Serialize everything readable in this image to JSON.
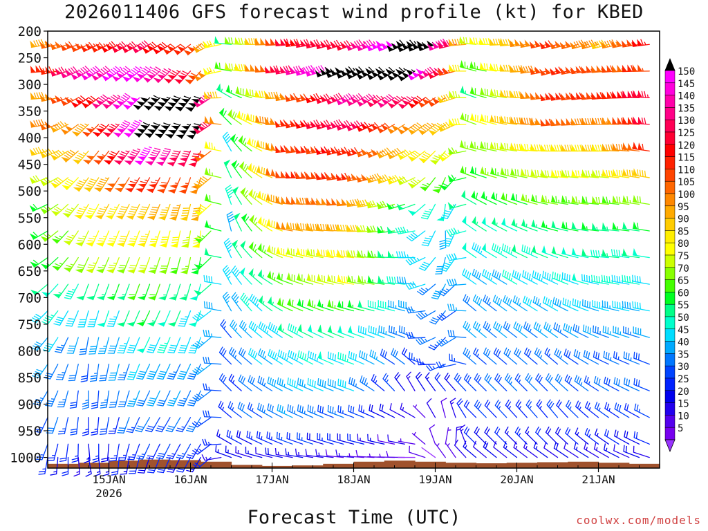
{
  "chart_data": {
    "type": "wind-barb time-height profile",
    "title": "2026011406 GFS forecast wind profile (kt) for KBED",
    "xlabel": "Forecast Time (UTC)",
    "credit": "coolwx.com/models",
    "pressure_levels": [
      225,
      275,
      325,
      375,
      425,
      475,
      525,
      575,
      625,
      675,
      725,
      775,
      825,
      875,
      925,
      975,
      1000
    ],
    "y_ticks": [
      200,
      250,
      300,
      350,
      400,
      450,
      500,
      550,
      600,
      650,
      700,
      750,
      800,
      850,
      900,
      950,
      1000
    ],
    "ylim": [
      200,
      1020
    ],
    "x_ticks": [
      {
        "label": "15JAN",
        "sublabel": "2026",
        "hour": 18
      },
      {
        "label": "16JAN",
        "sublabel": "",
        "hour": 42
      },
      {
        "label": "17JAN",
        "sublabel": "",
        "hour": 66
      },
      {
        "label": "18JAN",
        "sublabel": "",
        "hour": 90
      },
      {
        "label": "19JAN",
        "sublabel": "",
        "hour": 114
      },
      {
        "label": "20JAN",
        "sublabel": "",
        "hour": 138
      },
      {
        "label": "21JAN",
        "sublabel": "",
        "hour": 162
      }
    ],
    "xlim_hours": [
      0,
      180
    ],
    "time_step_hours": 3,
    "colorbar": {
      "labels": [
        150,
        145,
        140,
        135,
        130,
        125,
        120,
        115,
        110,
        105,
        100,
        95,
        90,
        85,
        80,
        75,
        70,
        65,
        60,
        55,
        50,
        45,
        40,
        35,
        30,
        25,
        20,
        15,
        10,
        5
      ],
      "colors": [
        "#ff00ff",
        "#ff00dd",
        "#ff00aa",
        "#ff0088",
        "#ff0055",
        "#ff0033",
        "#ff0000",
        "#ff2200",
        "#ff4400",
        "#ff6600",
        "#ff8800",
        "#ffaa00",
        "#ffcc00",
        "#ffee00",
        "#ffff00",
        "#ccff00",
        "#88ff00",
        "#44ff00",
        "#00ff22",
        "#00ff88",
        "#00ffcc",
        "#00ddff",
        "#00aaff",
        "#0077ff",
        "#0044ff",
        "#0022ff",
        "#0000ee",
        "#2200ee",
        "#5500ee",
        "#7700ee"
      ],
      "over_color": "#000000",
      "under_color": "#9933ff"
    },
    "wind_keyframes": [
      {
        "hour": 0,
        "levels": [
          [
            260,
            95
          ],
          [
            265,
            110
          ],
          [
            265,
            95
          ],
          [
            260,
            100
          ],
          [
            255,
            85
          ],
          [
            250,
            70
          ],
          [
            245,
            60
          ],
          [
            240,
            60
          ],
          [
            235,
            55
          ],
          [
            230,
            50
          ],
          [
            225,
            45
          ],
          [
            220,
            40
          ],
          [
            215,
            35
          ],
          [
            210,
            35
          ],
          [
            205,
            30
          ],
          [
            200,
            25
          ],
          [
            190,
            20
          ]
        ]
      },
      {
        "hour": 12,
        "levels": [
          [
            245,
            110
          ],
          [
            240,
            140
          ],
          [
            235,
            115
          ],
          [
            225,
            95
          ],
          [
            220,
            90
          ],
          [
            215,
            85
          ],
          [
            210,
            80
          ],
          [
            205,
            75
          ],
          [
            205,
            70
          ],
          [
            200,
            50
          ],
          [
            195,
            40
          ],
          [
            190,
            35
          ],
          [
            185,
            30
          ],
          [
            180,
            30
          ],
          [
            180,
            25
          ],
          [
            175,
            20
          ],
          [
            170,
            15
          ]
        ]
      },
      {
        "hour": 30,
        "levels": [
          [
            240,
            125
          ],
          [
            230,
            145
          ],
          [
            225,
            155
          ],
          [
            220,
            160
          ],
          [
            215,
            145
          ],
          [
            210,
            115
          ],
          [
            205,
            90
          ],
          [
            200,
            80
          ],
          [
            200,
            70
          ],
          [
            200,
            60
          ],
          [
            205,
            55
          ],
          [
            205,
            45
          ],
          [
            205,
            40
          ],
          [
            205,
            35
          ],
          [
            210,
            30
          ],
          [
            205,
            25
          ],
          [
            200,
            20
          ]
        ]
      },
      {
        "hour": 46,
        "levels": [
          [
            230,
            105
          ],
          [
            220,
            110
          ],
          [
            215,
            160
          ],
          [
            210,
            155
          ],
          [
            200,
            120
          ],
          [
            195,
            100
          ],
          [
            190,
            90
          ],
          [
            185,
            75
          ],
          [
            190,
            60
          ],
          [
            195,
            50
          ],
          [
            200,
            45
          ],
          [
            200,
            40
          ],
          [
            205,
            35
          ],
          [
            205,
            35
          ],
          [
            210,
            30
          ],
          [
            210,
            25
          ],
          [
            210,
            20
          ]
        ]
      },
      {
        "hour": 54,
        "levels": [
          [
            275,
            55
          ],
          [
            280,
            60
          ],
          [
            300,
            50
          ],
          [
            315,
            60
          ],
          [
            330,
            45
          ],
          [
            335,
            50
          ],
          [
            340,
            45
          ],
          [
            345,
            40
          ],
          [
            335,
            45
          ],
          [
            330,
            40
          ],
          [
            330,
            35
          ],
          [
            320,
            30
          ],
          [
            315,
            30
          ],
          [
            315,
            25
          ],
          [
            310,
            25
          ],
          [
            300,
            20
          ],
          [
            290,
            15
          ]
        ]
      },
      {
        "hour": 72,
        "levels": [
          [
            265,
            120
          ],
          [
            260,
            130
          ],
          [
            260,
            100
          ],
          [
            260,
            110
          ],
          [
            265,
            110
          ],
          [
            270,
            110
          ],
          [
            275,
            100
          ],
          [
            280,
            95
          ],
          [
            285,
            75
          ],
          [
            290,
            65
          ],
          [
            295,
            60
          ],
          [
            300,
            50
          ],
          [
            300,
            45
          ],
          [
            295,
            40
          ],
          [
            295,
            35
          ],
          [
            290,
            25
          ],
          [
            280,
            15
          ]
        ]
      },
      {
        "hour": 90,
        "levels": [
          [
            250,
            125
          ],
          [
            245,
            160
          ],
          [
            245,
            135
          ],
          [
            250,
            130
          ],
          [
            255,
            115
          ],
          [
            260,
            110
          ],
          [
            265,
            100
          ],
          [
            270,
            90
          ],
          [
            275,
            80
          ],
          [
            280,
            75
          ],
          [
            285,
            60
          ],
          [
            290,
            50
          ],
          [
            290,
            45
          ],
          [
            290,
            40
          ],
          [
            290,
            30
          ],
          [
            285,
            20
          ],
          [
            275,
            10
          ]
        ]
      },
      {
        "hour": 108,
        "levels": [
          [
            245,
            165
          ],
          [
            235,
            160
          ],
          [
            230,
            125
          ],
          [
            235,
            95
          ],
          [
            240,
            85
          ],
          [
            245,
            75
          ],
          [
            250,
            50
          ],
          [
            260,
            45
          ],
          [
            270,
            45
          ],
          [
            275,
            40
          ],
          [
            285,
            35
          ],
          [
            290,
            30
          ],
          [
            310,
            25
          ],
          [
            330,
            15
          ],
          [
            300,
            10
          ],
          [
            280,
            8
          ],
          [
            270,
            5
          ]
        ]
      },
      {
        "hour": 118,
        "levels": [
          [
            250,
            140
          ],
          [
            245,
            120
          ],
          [
            240,
            100
          ],
          [
            230,
            90
          ],
          [
            215,
            75
          ],
          [
            200,
            60
          ],
          [
            180,
            45
          ],
          [
            170,
            40
          ],
          [
            185,
            40
          ],
          [
            200,
            35
          ],
          [
            210,
            30
          ],
          [
            215,
            30
          ],
          [
            240,
            25
          ],
          [
            320,
            20
          ],
          [
            350,
            10
          ],
          [
            20,
            8
          ],
          [
            330,
            5
          ]
        ]
      },
      {
        "hour": 126,
        "levels": [
          [
            275,
            70
          ],
          [
            285,
            60
          ],
          [
            290,
            55
          ],
          [
            290,
            70
          ],
          [
            285,
            65
          ],
          [
            290,
            60
          ],
          [
            300,
            55
          ],
          [
            305,
            50
          ],
          [
            305,
            45
          ],
          [
            305,
            40
          ],
          [
            310,
            35
          ],
          [
            310,
            35
          ],
          [
            310,
            30
          ],
          [
            315,
            30
          ],
          [
            315,
            25
          ],
          [
            315,
            20
          ],
          [
            310,
            15
          ]
        ]
      },
      {
        "hour": 150,
        "levels": [
          [
            255,
            110
          ],
          [
            255,
            110
          ],
          [
            260,
            110
          ],
          [
            265,
            105
          ],
          [
            270,
            85
          ],
          [
            275,
            75
          ],
          [
            280,
            65
          ],
          [
            285,
            55
          ],
          [
            290,
            50
          ],
          [
            295,
            45
          ],
          [
            300,
            40
          ],
          [
            305,
            35
          ],
          [
            310,
            30
          ],
          [
            315,
            30
          ],
          [
            320,
            25
          ],
          [
            315,
            20
          ],
          [
            305,
            15
          ]
        ]
      },
      {
        "hour": 165,
        "levels": [
          [
            255,
            90
          ],
          [
            265,
            105
          ],
          [
            265,
            110
          ],
          [
            270,
            95
          ],
          [
            270,
            85
          ],
          [
            275,
            75
          ],
          [
            275,
            65
          ],
          [
            275,
            55
          ],
          [
            275,
            50
          ],
          [
            280,
            45
          ],
          [
            285,
            40
          ],
          [
            290,
            35
          ],
          [
            295,
            30
          ],
          [
            300,
            30
          ],
          [
            305,
            25
          ],
          [
            305,
            20
          ],
          [
            300,
            15
          ]
        ]
      },
      {
        "hour": 180,
        "levels": [
          [
            265,
            120
          ],
          [
            270,
            110
          ],
          [
            275,
            130
          ],
          [
            275,
            125
          ],
          [
            280,
            115
          ],
          [
            280,
            95
          ],
          [
            280,
            70
          ],
          [
            280,
            55
          ],
          [
            280,
            50
          ],
          [
            280,
            45
          ],
          [
            280,
            40
          ],
          [
            285,
            35
          ],
          [
            290,
            30
          ],
          [
            290,
            30
          ],
          [
            295,
            25
          ],
          [
            290,
            20
          ],
          [
            285,
            15
          ]
        ]
      }
    ],
    "terrain_surface_mb": [
      1012,
      1010,
      1006,
      1004,
      1005,
      1008,
      1014,
      1016,
      1015,
      1012,
      1008,
      1006,
      1008,
      1010,
      1011,
      1010,
      1009,
      1008,
      1010,
      1012
    ]
  }
}
